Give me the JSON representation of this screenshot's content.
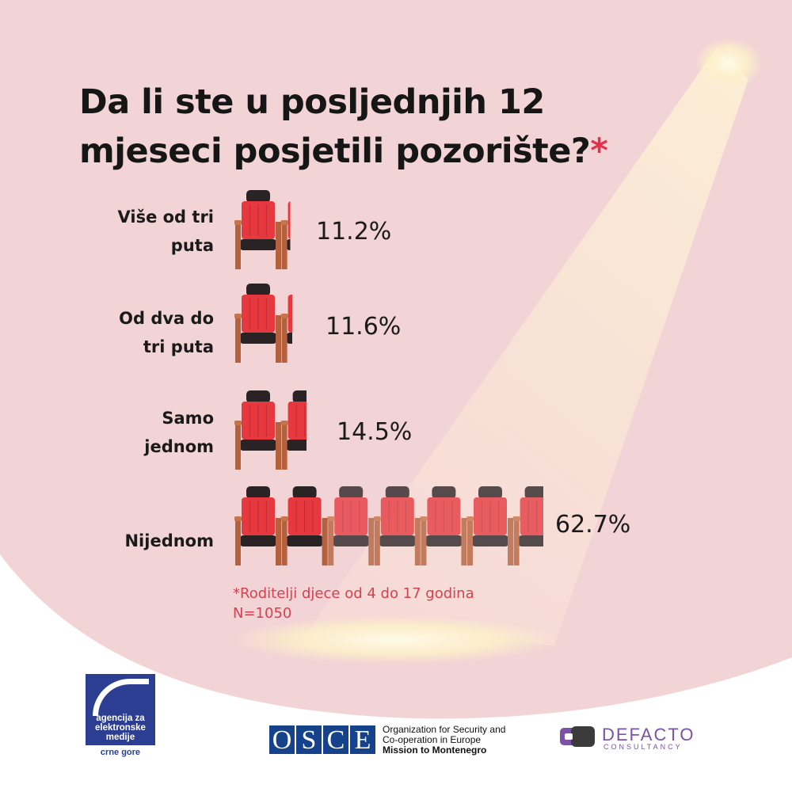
{
  "title": "Da li ste u posljednjih 12 mjeseci posjetili pozorište?",
  "title_mark": "*",
  "colors": {
    "background_pink": "#f3d4d6",
    "seat_red": "#e5393f",
    "seat_dark": "#2a2326",
    "leg_brown": "#b5613d",
    "title_text": "#161616",
    "note_red": "#d5414f",
    "spotlight": "#fdf0c8"
  },
  "chart_data": {
    "type": "pictograph-bar",
    "unit": "%",
    "categories": [
      "Više od tri puta",
      "Od dva do tri puta",
      "Samo jednom",
      "Nijednom"
    ],
    "values": [
      11.2,
      11.6,
      14.5,
      62.7
    ],
    "value_labels": [
      "11.2%",
      "11.6%",
      "14.5%",
      "62.7%"
    ],
    "icon": "theater-seat-icon"
  },
  "rows": [
    {
      "label": "Više od tri puta",
      "label_lines": [
        "Više od tri",
        "puta"
      ],
      "pct": "11.2%"
    },
    {
      "label": "Od dva do tri puta",
      "label_lines": [
        "Od dva do",
        "tri puta"
      ],
      "pct": "11.6%"
    },
    {
      "label": "Samo jednom",
      "label_lines": [
        "Samo",
        "jednom"
      ],
      "pct": "14.5%"
    },
    {
      "label": "Nijednom",
      "label_lines": [
        "Nijednom"
      ],
      "pct": "62.7%"
    }
  ],
  "note": {
    "line1": "*Roditelji djece od 4 do 17 godina",
    "line2": "N=1050"
  },
  "logos": {
    "aem": {
      "line1": "agencija za",
      "line2": "elektronske",
      "line3": "medije",
      "sub": "crne gore"
    },
    "osce": {
      "letters": [
        "O",
        "S",
        "C",
        "E"
      ],
      "line1": "Organization for Security and",
      "line2": "Co-operation in Europe",
      "line3": "Mission to Montenegro"
    },
    "defacto": {
      "name": "DEFACTO",
      "sub": "CONSULTANCY"
    }
  }
}
